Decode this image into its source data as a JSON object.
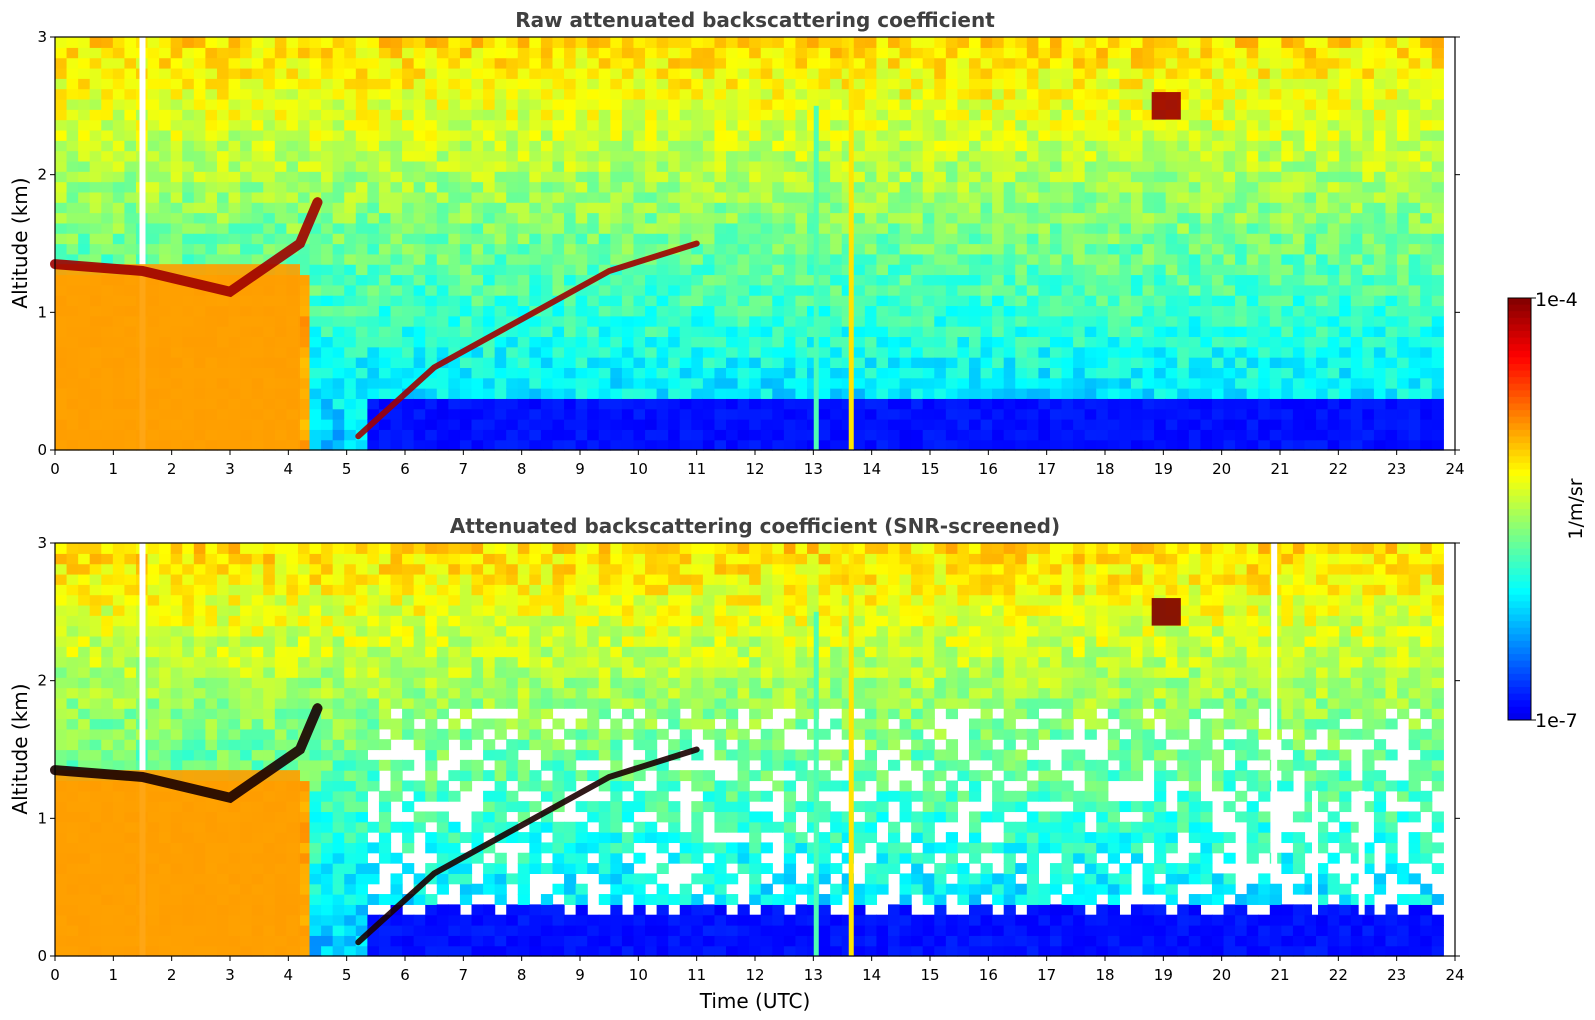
{
  "chart_data": [
    {
      "type": "heatmap",
      "title": "Raw attenuated backscattering coefficient",
      "xlabel": "",
      "ylabel": "Altitude (km)",
      "xlim": [
        0,
        24
      ],
      "ylim": [
        0,
        3
      ],
      "xticks": [
        "0",
        "1",
        "2",
        "3",
        "4",
        "5",
        "6",
        "7",
        "8",
        "9",
        "10",
        "11",
        "12",
        "13",
        "14",
        "15",
        "16",
        "17",
        "18",
        "19",
        "20",
        "21",
        "22",
        "23",
        "24"
      ],
      "yticks": [
        "0",
        "1",
        "2",
        "3"
      ],
      "screened": false,
      "colormap": "jet",
      "log_scale": true,
      "grid": false,
      "features": [
        {
          "kind": "gap",
          "x": 1.5,
          "y": [
            0,
            3
          ]
        },
        {
          "kind": "boundary-layer",
          "x": [
            0,
            4.2
          ],
          "y": [
            0,
            1.35
          ],
          "level": 0.72
        },
        {
          "kind": "layer-top",
          "points": [
            [
              0,
              1.35
            ],
            [
              1.5,
              1.3
            ],
            [
              3.0,
              1.15
            ],
            [
              4.2,
              1.5
            ],
            [
              4.5,
              1.8
            ]
          ],
          "level": 0.97
        },
        {
          "kind": "cloud-arc",
          "points": [
            [
              5.2,
              0.1
            ],
            [
              6.5,
              0.6
            ],
            [
              8.0,
              0.95
            ],
            [
              9.5,
              1.3
            ],
            [
              11.0,
              1.5
            ]
          ],
          "level": 0.97
        },
        {
          "kind": "precip-column",
          "x": 13.05,
          "y": [
            0,
            2.5
          ],
          "level": 0.45
        },
        {
          "kind": "precip-column",
          "x": 13.65,
          "y": [
            0,
            3
          ],
          "level": 0.65
        },
        {
          "kind": "cloud-patch",
          "x": [
            18.8,
            19.3
          ],
          "y": [
            2.4,
            2.6
          ],
          "level": 0.97
        }
      ]
    },
    {
      "type": "heatmap",
      "title": "Attenuated backscattering coefficient (SNR-screened)",
      "xlabel": "Time (UTC)",
      "ylabel": "Altitude (km)",
      "xlim": [
        0,
        24
      ],
      "ylim": [
        0,
        3
      ],
      "xticks": [
        "0",
        "1",
        "2",
        "3",
        "4",
        "5",
        "6",
        "7",
        "8",
        "9",
        "10",
        "11",
        "12",
        "13",
        "14",
        "15",
        "16",
        "17",
        "18",
        "19",
        "20",
        "21",
        "22",
        "23",
        "24"
      ],
      "yticks": [
        "0",
        "1",
        "2",
        "3"
      ],
      "screened": true,
      "colormap": "jet",
      "log_scale": true,
      "grid": false,
      "features": [
        {
          "kind": "gap",
          "x": 1.5,
          "y": [
            0,
            3
          ]
        },
        {
          "kind": "boundary-layer",
          "x": [
            0,
            4.2
          ],
          "y": [
            0,
            1.35
          ],
          "level": 0.72
        },
        {
          "kind": "layer-top",
          "points": [
            [
              0,
              1.35
            ],
            [
              1.5,
              1.3
            ],
            [
              3.0,
              1.15
            ],
            [
              4.2,
              1.5
            ],
            [
              4.5,
              1.8
            ]
          ],
          "level": 1.0
        },
        {
          "kind": "cloud-arc",
          "points": [
            [
              5.2,
              0.1
            ],
            [
              6.5,
              0.6
            ],
            [
              8.0,
              0.95
            ],
            [
              9.5,
              1.3
            ],
            [
              11.0,
              1.5
            ]
          ],
          "level": 1.0
        },
        {
          "kind": "precip-column",
          "x": 13.05,
          "y": [
            0,
            2.5
          ],
          "level": 0.45
        },
        {
          "kind": "precip-column",
          "x": 13.65,
          "y": [
            0,
            3
          ],
          "level": 0.65
        },
        {
          "kind": "cloud-patch",
          "x": [
            18.8,
            19.3
          ],
          "y": [
            2.4,
            2.6
          ],
          "level": 1.0
        },
        {
          "kind": "screen-gap",
          "x": 20.9,
          "y": [
            0.6,
            3
          ]
        },
        {
          "kind": "screen-gap",
          "x": 21.6,
          "y": [
            0.3,
            1.2
          ]
        },
        {
          "kind": "screen-gap",
          "x": 22.4,
          "y": [
            0.3,
            1.2
          ]
        }
      ]
    }
  ],
  "colorbar": {
    "label": "1/m/sr",
    "max_label": "1e-4",
    "min_label": "1e-7",
    "range": [
      1e-07,
      0.0001
    ],
    "colormap": "jet"
  }
}
